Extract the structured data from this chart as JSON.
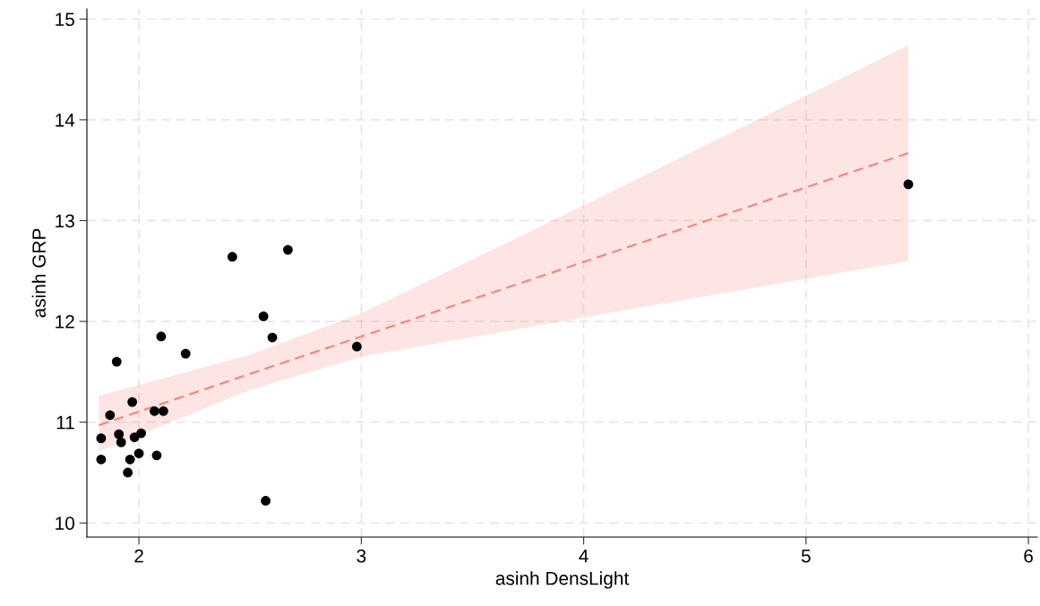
{
  "chart_data": {
    "type": "scatter",
    "xlabel": "asinh DensLight",
    "ylabel": "asinh GRP",
    "xlim": [
      1.766,
      6.04
    ],
    "ylim": [
      9.86,
      15.1
    ],
    "xticks": [
      2,
      3,
      4,
      5,
      6
    ],
    "yticks": [
      10,
      11,
      12,
      13,
      14,
      15
    ],
    "grid": true,
    "series": [
      {
        "marker": "circle",
        "color": "#000000",
        "x": [
          1.83,
          1.83,
          1.87,
          1.9,
          1.91,
          1.92,
          1.95,
          1.96,
          1.97,
          1.98,
          2.0,
          2.01,
          2.07,
          2.08,
          2.1,
          2.11,
          2.21,
          2.42,
          2.56,
          2.57,
          2.6,
          2.67,
          2.98,
          5.46
        ],
        "values": [
          10.84,
          10.63,
          11.07,
          11.6,
          10.88,
          10.8,
          10.5,
          10.63,
          11.2,
          10.85,
          10.69,
          10.89,
          11.11,
          10.67,
          11.85,
          11.11,
          11.68,
          12.64,
          12.05,
          10.22,
          11.84,
          12.71,
          11.75,
          13.36
        ]
      },
      {
        "type": "line",
        "line_style": "dashed",
        "color": "#f4877f",
        "x": [
          1.82,
          2.5,
          3,
          4,
          5.46
        ],
        "values": [
          10.97,
          11.48,
          11.85,
          12.59,
          13.67
        ],
        "lower": [
          10.71,
          11.32,
          11.65,
          12.04,
          12.6
        ],
        "upper": [
          11.26,
          11.67,
          12.08,
          13.15,
          14.74
        ]
      }
    ]
  }
}
